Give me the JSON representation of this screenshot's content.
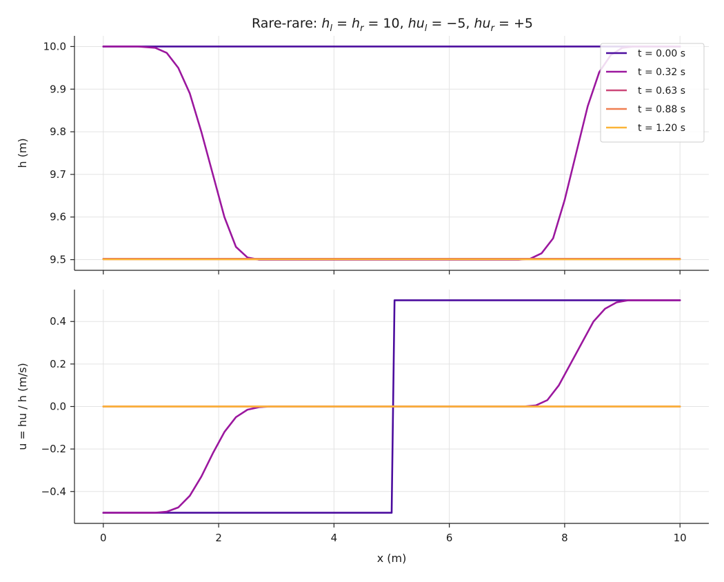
{
  "title": {
    "prefix": "Rare-rare: ",
    "h_l": "h",
    "h_l_sub": "l",
    "eq1": " = ",
    "h_r": "h",
    "h_r_sub": "r",
    "eq2": " = 10, ",
    "hu_l": "hu",
    "hu_l_sub": "l",
    "eq3": " = −5, ",
    "hu_r": "hu",
    "hu_r_sub": "r",
    "eq4": " = +5"
  },
  "chart_data": [
    {
      "type": "line",
      "xlabel": "",
      "ylabel": "h (m)",
      "xlim": [
        -0.5,
        10.5
      ],
      "ylim": [
        9.475,
        10.025
      ],
      "xticks": [
        0,
        2,
        4,
        6,
        8,
        10
      ],
      "xtick_labels_visible": false,
      "yticks": [
        9.5,
        9.6,
        9.7,
        9.8,
        9.9,
        10.0
      ],
      "ytick_labels": [
        "9.5",
        "9.6",
        "9.7",
        "9.8",
        "9.9",
        "10.0"
      ],
      "grid": true,
      "legend": "top-right",
      "series": [
        {
          "name": "t = 0.00 s",
          "color": "#4b0c9e",
          "x": [
            0,
            10
          ],
          "y": [
            10.0,
            10.0
          ]
        },
        {
          "name": "t = 0.32 s",
          "color": "#9b179e",
          "x": [
            0,
            0.6,
            0.9,
            1.1,
            1.3,
            1.5,
            1.7,
            1.9,
            2.1,
            2.3,
            2.5,
            2.7,
            2.9,
            3.0,
            7.0,
            7.2,
            7.4,
            7.6,
            7.8,
            8.0,
            8.2,
            8.4,
            8.6,
            8.8,
            9.0,
            9.2,
            10.0
          ],
          "y": [
            10.0,
            10.0,
            9.997,
            9.985,
            9.95,
            9.89,
            9.8,
            9.7,
            9.6,
            9.53,
            9.505,
            9.5,
            9.5,
            9.5,
            9.5,
            9.5,
            9.502,
            9.515,
            9.55,
            9.64,
            9.75,
            9.86,
            9.94,
            9.98,
            9.997,
            10.0,
            10.0
          ]
        },
        {
          "name": "t = 0.63 s",
          "color": "#cc4778",
          "x": [
            0,
            10
          ],
          "y": [
            9.502,
            9.502
          ]
        },
        {
          "name": "t = 0.88 s",
          "color": "#ef7e50",
          "x": [
            0,
            10
          ],
          "y": [
            9.501,
            9.501
          ]
        },
        {
          "name": "t = 1.20 s",
          "color": "#fbb437",
          "x": [
            0,
            10
          ],
          "y": [
            9.501,
            9.501
          ]
        }
      ]
    },
    {
      "type": "line",
      "xlabel": "x (m)",
      "ylabel": "u = hu / h (m/s)",
      "xlim": [
        -0.5,
        10.5
      ],
      "ylim": [
        -0.55,
        0.55
      ],
      "xticks": [
        0,
        2,
        4,
        6,
        8,
        10
      ],
      "xtick_labels": [
        "0",
        "2",
        "4",
        "6",
        "8",
        "10"
      ],
      "yticks": [
        -0.4,
        -0.2,
        0.0,
        0.2,
        0.4
      ],
      "ytick_labels": [
        "−0.4",
        "−0.2",
        "0.0",
        "0.2",
        "0.4"
      ],
      "grid": true,
      "series": [
        {
          "name": "t = 0.00 s",
          "color": "#4b0c9e",
          "x": [
            0,
            5.0,
            5.05,
            10
          ],
          "y": [
            -0.5,
            -0.5,
            0.5,
            0.5
          ]
        },
        {
          "name": "t = 0.32 s",
          "color": "#9b179e",
          "x": [
            0,
            0.9,
            1.1,
            1.3,
            1.5,
            1.7,
            1.9,
            2.1,
            2.3,
            2.5,
            2.7,
            2.9,
            3.0,
            7.0,
            7.3,
            7.5,
            7.7,
            7.9,
            8.1,
            8.3,
            8.5,
            8.7,
            8.9,
            9.1,
            9.3,
            10.0
          ],
          "y": [
            -0.5,
            -0.5,
            -0.495,
            -0.475,
            -0.42,
            -0.33,
            -0.22,
            -0.12,
            -0.05,
            -0.015,
            -0.003,
            0.0,
            0.0,
            0.0,
            0.0,
            0.005,
            0.03,
            0.1,
            0.2,
            0.3,
            0.4,
            0.46,
            0.49,
            0.5,
            0.5,
            0.5
          ]
        },
        {
          "name": "t = 0.63 s",
          "color": "#cc4778",
          "x": [
            0,
            10
          ],
          "y": [
            0.0,
            0.0
          ]
        },
        {
          "name": "t = 0.88 s",
          "color": "#ef7e50",
          "x": [
            0,
            10
          ],
          "y": [
            0.0,
            0.0
          ]
        },
        {
          "name": "t = 1.20 s",
          "color": "#fbb437",
          "x": [
            0,
            10
          ],
          "y": [
            0.0,
            0.0
          ]
        }
      ]
    }
  ]
}
